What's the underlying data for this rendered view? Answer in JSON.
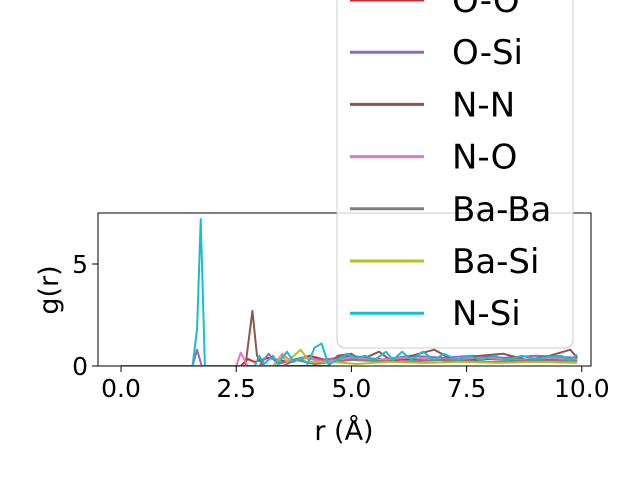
{
  "chart_data": {
    "type": "line",
    "xlabel": "r (Å)",
    "ylabel": "g(r)",
    "xlim": [
      -0.5,
      10.2
    ],
    "ylim": [
      0,
      7.5
    ],
    "x_ticks": [
      0.0,
      2.5,
      5.0,
      7.5,
      10.0
    ],
    "x_tick_labels": [
      "0.0",
      "2.5",
      "5.0",
      "7.5",
      "10.0"
    ],
    "y_ticks": [
      0,
      5
    ],
    "y_tick_labels": [
      "0",
      "5"
    ],
    "grid": false,
    "legend_placement": "top-right",
    "series": [
      {
        "name": "O-O",
        "color": "#d62728",
        "points": [
          [
            0,
            0
          ],
          [
            2.6,
            0
          ],
          [
            2.75,
            0.35
          ],
          [
            2.9,
            0.2
          ],
          [
            3.2,
            0.4
          ],
          [
            3.6,
            0.2
          ],
          [
            4.1,
            0.5
          ],
          [
            4.6,
            0.2
          ],
          [
            5.2,
            0.4
          ],
          [
            5.8,
            0.3
          ],
          [
            6.5,
            0.35
          ],
          [
            7.2,
            0.25
          ],
          [
            8.0,
            0.35
          ],
          [
            8.8,
            0.3
          ],
          [
            9.5,
            0.3
          ],
          [
            9.9,
            0.3
          ]
        ]
      },
      {
        "name": "O-Si",
        "color": "#9467bd",
        "points": [
          [
            0,
            0
          ],
          [
            1.55,
            0
          ],
          [
            1.65,
            0.8
          ],
          [
            1.75,
            0
          ],
          [
            3.0,
            0
          ],
          [
            3.2,
            0.6
          ],
          [
            3.4,
            0.1
          ],
          [
            3.9,
            0.4
          ],
          [
            4.4,
            0.3
          ],
          [
            5.0,
            0.5
          ],
          [
            5.6,
            0.3
          ],
          [
            6.3,
            0.5
          ],
          [
            7.0,
            0.4
          ],
          [
            7.6,
            0.5
          ],
          [
            8.3,
            0.4
          ],
          [
            9.0,
            0.5
          ],
          [
            9.9,
            0.4
          ]
        ]
      },
      {
        "name": "N-N",
        "color": "#8c564b",
        "points": [
          [
            0,
            0
          ],
          [
            2.7,
            0
          ],
          [
            2.85,
            2.7
          ],
          [
            2.95,
            0.5
          ],
          [
            3.1,
            0
          ],
          [
            4.5,
            0
          ],
          [
            4.7,
            0.5
          ],
          [
            5.0,
            0.6
          ],
          [
            5.2,
            0.3
          ],
          [
            5.6,
            0.7
          ],
          [
            5.9,
            0.2
          ],
          [
            6.3,
            0.5
          ],
          [
            6.8,
            0.8
          ],
          [
            7.2,
            0.3
          ],
          [
            7.8,
            0.5
          ],
          [
            8.3,
            0.6
          ],
          [
            8.8,
            0.3
          ],
          [
            9.3,
            0.5
          ],
          [
            9.75,
            0.8
          ],
          [
            9.9,
            0.4
          ]
        ]
      },
      {
        "name": "N-O",
        "color": "#e377c2",
        "points": [
          [
            0,
            0
          ],
          [
            2.5,
            0
          ],
          [
            2.6,
            0.65
          ],
          [
            2.75,
            0
          ],
          [
            3.3,
            0
          ],
          [
            3.5,
            0.6
          ],
          [
            3.7,
            0.2
          ],
          [
            4.0,
            0.4
          ],
          [
            4.4,
            0.2
          ],
          [
            5.0,
            0.4
          ],
          [
            5.6,
            0.3
          ],
          [
            6.2,
            0.4
          ],
          [
            7.0,
            0.3
          ],
          [
            7.8,
            0.4
          ],
          [
            8.6,
            0.3
          ],
          [
            9.3,
            0.4
          ],
          [
            9.9,
            0.3
          ]
        ]
      },
      {
        "name": "Ba-Ba",
        "color": "#7f7f7f",
        "points": [
          [
            0,
            0
          ],
          [
            3.5,
            0
          ],
          [
            3.8,
            0.3
          ],
          [
            4.2,
            0.1
          ],
          [
            5.0,
            0.3
          ],
          [
            6.0,
            0.2
          ],
          [
            7.0,
            0.3
          ],
          [
            8.0,
            0.2
          ],
          [
            9.0,
            0.3
          ],
          [
            9.9,
            0.25
          ]
        ]
      },
      {
        "name": "Ba-Si",
        "color": "#bcbd22",
        "points": [
          [
            0,
            0
          ],
          [
            3.3,
            0
          ],
          [
            3.5,
            0.5
          ],
          [
            3.6,
            0.2
          ],
          [
            3.9,
            0.8
          ],
          [
            4.1,
            0.2
          ],
          [
            4.6,
            0.2
          ],
          [
            5.1,
            0.1
          ],
          [
            5.8,
            0.2
          ],
          [
            6.6,
            0.15
          ],
          [
            7.4,
            0.2
          ],
          [
            8.2,
            0.15
          ],
          [
            9.0,
            0.2
          ],
          [
            9.9,
            0.15
          ]
        ]
      },
      {
        "name": "N-Si",
        "color": "#17becf",
        "points": [
          [
            0,
            0
          ],
          [
            1.55,
            0
          ],
          [
            1.65,
            1.8
          ],
          [
            1.73,
            7.2
          ],
          [
            1.82,
            0
          ],
          [
            2.9,
            0
          ],
          [
            3.0,
            0.5
          ],
          [
            3.1,
            0.1
          ],
          [
            3.3,
            0.5
          ],
          [
            3.4,
            0.1
          ],
          [
            3.6,
            0.7
          ],
          [
            3.75,
            0.2
          ],
          [
            3.9,
            0.4
          ],
          [
            4.05,
            0.1
          ],
          [
            4.2,
            0.9
          ],
          [
            4.35,
            1.1
          ],
          [
            4.5,
            0.1
          ],
          [
            4.7,
            0.3
          ],
          [
            4.9,
            0.6
          ],
          [
            5.1,
            0.4
          ],
          [
            5.3,
            0.5
          ],
          [
            5.5,
            0.3
          ],
          [
            5.75,
            0.7
          ],
          [
            5.9,
            0.3
          ],
          [
            6.1,
            0.7
          ],
          [
            6.3,
            0.3
          ],
          [
            6.55,
            0.7
          ],
          [
            6.8,
            0.3
          ],
          [
            7.0,
            0.6
          ],
          [
            7.3,
            0.3
          ],
          [
            7.55,
            0.5
          ],
          [
            7.8,
            0.3
          ],
          [
            8.1,
            0.5
          ],
          [
            8.4,
            0.3
          ],
          [
            8.7,
            0.5
          ],
          [
            9.0,
            0.35
          ],
          [
            9.3,
            0.45
          ],
          [
            9.55,
            0.5
          ],
          [
            9.75,
            0.3
          ],
          [
            9.9,
            0.55
          ]
        ]
      }
    ]
  }
}
